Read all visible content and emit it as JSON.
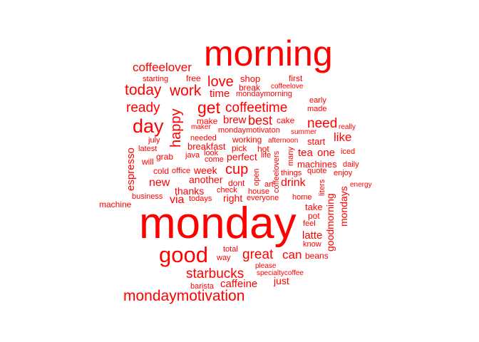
{
  "word_color": "#ff0000",
  "words": [
    "morning",
    "monday",
    "good",
    "mondaymotivation",
    "starbucks",
    "day",
    "get",
    "coffeetime",
    "cup",
    "today",
    "work",
    "coffeelover",
    "love",
    "happy",
    "ready",
    "great",
    "need",
    "best",
    "like",
    "caffeine",
    "can",
    "drink",
    "just",
    "time",
    "brew",
    "one",
    "tea",
    "latte",
    "espresso",
    "week",
    "new",
    "via",
    "thanks",
    "another",
    "perfect",
    "right",
    "mondays",
    "goodmorning",
    "shop",
    "free",
    "starting",
    "first",
    "break",
    "coffeelove",
    "mondaymorning",
    "early",
    "made",
    "cake",
    "make",
    "maker",
    "mondaymotivaton",
    "summer",
    "really",
    "start",
    "working",
    "afternoon",
    "july",
    "latest",
    "needed",
    "breakfast",
    "pick",
    "hot",
    "iced",
    "will",
    "grab",
    "java",
    "look",
    "come",
    "life",
    "many",
    "machines",
    "daily",
    "cold",
    "office",
    "quote",
    "enjoy",
    "coffeelovers",
    "things",
    "open",
    "art",
    "dont",
    "check",
    "house",
    "liters",
    "energy",
    "business",
    "todays",
    "everyone",
    "home",
    "machine",
    "take",
    "pot",
    "feel",
    "know",
    "total",
    "way",
    "beans",
    "please",
    "specialtycoffee",
    "barista"
  ]
}
